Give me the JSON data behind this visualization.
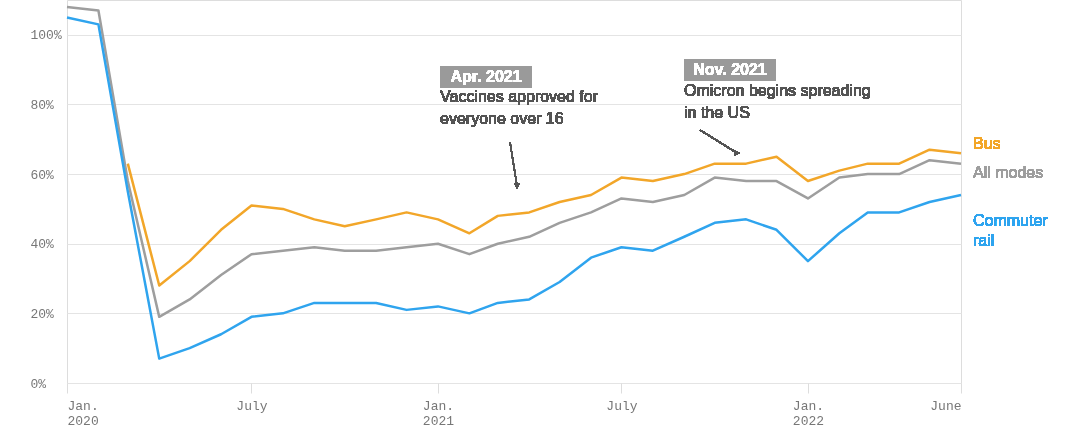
{
  "chart_data": {
    "type": "line",
    "x": [
      "2020-01",
      "2020-02",
      "2020-03",
      "2020-04",
      "2020-05",
      "2020-06",
      "2020-07",
      "2020-08",
      "2020-09",
      "2020-10",
      "2020-11",
      "2020-12",
      "2021-01",
      "2021-02",
      "2021-03",
      "2021-04",
      "2021-05",
      "2021-06",
      "2021-07",
      "2021-08",
      "2021-09",
      "2021-10",
      "2021-11",
      "2021-12",
      "2022-01",
      "2022-02",
      "2022-03",
      "2022-04",
      "2022-05",
      "2022-06"
    ],
    "series": [
      {
        "name": "Bus",
        "color": "#f2a629",
        "values": [
          null,
          null,
          63,
          28,
          35,
          44,
          51,
          50,
          47,
          45,
          47,
          49,
          47,
          43,
          48,
          49,
          52,
          54,
          59,
          58,
          60,
          63,
          63,
          65,
          58,
          61,
          63,
          63,
          67,
          66
        ]
      },
      {
        "name": "All modes",
        "color": "#9e9e9e",
        "values": [
          108,
          107,
          58,
          19,
          24,
          31,
          37,
          38,
          39,
          38,
          38,
          39,
          40,
          37,
          40,
          42,
          46,
          49,
          53,
          52,
          54,
          59,
          58,
          58,
          53,
          59,
          60,
          60,
          64,
          63
        ]
      },
      {
        "name": "Commuter rail",
        "color": "#2fa4ee",
        "values": [
          105,
          103,
          55,
          7,
          10,
          14,
          19,
          20,
          23,
          23,
          23,
          21,
          22,
          20,
          23,
          24,
          29,
          36,
          39,
          38,
          42,
          46,
          47,
          44,
          35,
          43,
          49,
          49,
          52,
          54
        ]
      }
    ],
    "xlim": [
      "2020-01",
      "2022-06"
    ],
    "xticks": [
      {
        "value": "2020-01",
        "label": "Jan. 2020"
      },
      {
        "value": "2020-07",
        "label": "July"
      },
      {
        "value": "2021-01",
        "label": "Jan. 2021"
      },
      {
        "value": "2021-07",
        "label": "July"
      },
      {
        "value": "2022-01",
        "label": "Jan. 2022"
      },
      {
        "value": "2022-06",
        "label": "June"
      }
    ],
    "ylim": [
      0,
      110
    ],
    "yticks": [
      {
        "value": 0,
        "label": "0%"
      },
      {
        "value": 20,
        "label": "20%"
      },
      {
        "value": 40,
        "label": "40%"
      },
      {
        "value": 60,
        "label": "60%"
      },
      {
        "value": 80,
        "label": "80%"
      },
      {
        "value": 100,
        "label": "100%"
      }
    ],
    "grid": "y",
    "legend": false,
    "marker": "none",
    "line_style": "solid",
    "annotations": [
      "Apr. 2021",
      "Vaccines approved for\neveryone over 16",
      "Nov. 2021",
      "Omicron begins spreading\nin the US"
    ]
  }
}
